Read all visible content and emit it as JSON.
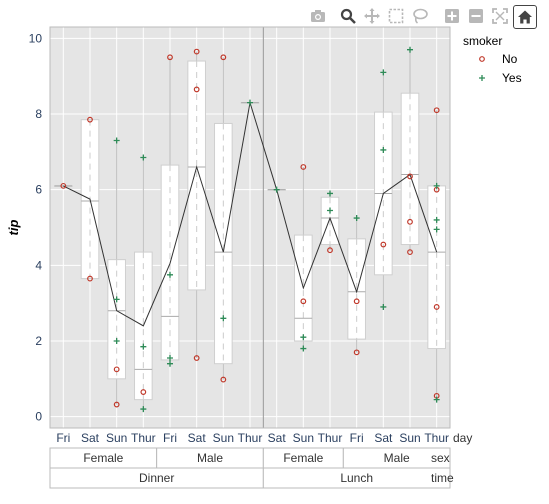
{
  "toolbar": {
    "buttons": [
      {
        "name": "camera-icon",
        "x": 0
      },
      {
        "name": "zoom-icon",
        "x": 0
      },
      {
        "name": "pan-icon",
        "x": 0
      },
      {
        "name": "box-select-icon",
        "x": 0
      },
      {
        "name": "lasso-icon",
        "x": 0
      },
      {
        "name": "zoom-in-icon",
        "x": 0
      },
      {
        "name": "zoom-out-icon",
        "x": 0
      },
      {
        "name": "autoscale-icon",
        "x": 0
      },
      {
        "name": "home-icon",
        "x": 0
      }
    ]
  },
  "chart_data": {
    "type": "box",
    "ylabel": "tip",
    "ylim": [
      -0.3,
      10.3
    ],
    "yticks": [
      0,
      2,
      4,
      6,
      8,
      10
    ],
    "categories": [
      {
        "day": "Fri",
        "sex": "Female",
        "time": "Dinner"
      },
      {
        "day": "Sat",
        "sex": "Female",
        "time": "Dinner"
      },
      {
        "day": "Sun",
        "sex": "Female",
        "time": "Dinner"
      },
      {
        "day": "Thur",
        "sex": "Female",
        "time": "Dinner"
      },
      {
        "day": "Fri",
        "sex": "Male",
        "time": "Dinner"
      },
      {
        "day": "Sat",
        "sex": "Male",
        "time": "Dinner"
      },
      {
        "day": "Sun",
        "sex": "Male",
        "time": "Dinner"
      },
      {
        "day": "Thur",
        "sex": "Male",
        "time": "Dinner"
      },
      {
        "day": "Sat",
        "sex": "Female",
        "time": "Lunch"
      },
      {
        "day": "Sun",
        "sex": "Female",
        "time": "Lunch"
      },
      {
        "day": "Thur",
        "sex": "Female",
        "time": "Lunch"
      },
      {
        "day": "Fri",
        "sex": "Male",
        "time": "Lunch"
      },
      {
        "day": "Sat",
        "sex": "Male",
        "time": "Lunch"
      },
      {
        "day": "Sun",
        "sex": "Male",
        "time": "Lunch"
      },
      {
        "day": "Thur",
        "sex": "Male",
        "time": "Lunch"
      }
    ],
    "axis_labels": {
      "day": "day",
      "sex": "sex",
      "time": "time"
    },
    "facets": {
      "sex": [
        {
          "label": "Female",
          "from": 0,
          "to": 3
        },
        {
          "label": "Male",
          "from": 4,
          "to": 7
        },
        {
          "label": "Female",
          "from": 8,
          "to": 10
        },
        {
          "label": "Male",
          "from": 11,
          "to": 14
        }
      ],
      "time": [
        {
          "label": "Dinner",
          "from": 0,
          "to": 7
        },
        {
          "label": "Lunch",
          "from": 8,
          "to": 14
        }
      ]
    },
    "boxes": [
      {
        "q1": 6.1,
        "q3": 6.1,
        "median": 6.1,
        "lo": 6.1,
        "hi": 6.1
      },
      {
        "q1": 3.65,
        "q3": 7.85,
        "median": 5.7,
        "lo": 3.65,
        "hi": 7.85
      },
      {
        "q1": 1.0,
        "q3": 4.15,
        "median": 2.8,
        "lo": 0.32,
        "hi": 7.3
      },
      {
        "q1": 0.45,
        "q3": 4.35,
        "median": 1.25,
        "lo": 0.2,
        "hi": 6.85
      },
      {
        "q1": 1.5,
        "q3": 6.65,
        "median": 2.65,
        "lo": 1.4,
        "hi": 9.5
      },
      {
        "q1": 3.35,
        "q3": 9.4,
        "median": 6.6,
        "lo": 1.55,
        "hi": 9.65
      },
      {
        "q1": 1.4,
        "q3": 7.75,
        "median": 4.35,
        "lo": 0.98,
        "hi": 9.5
      },
      {
        "q1": 8.3,
        "q3": 8.3,
        "median": 8.3,
        "lo": 8.3,
        "hi": 8.3
      },
      {
        "q1": 6.0,
        "q3": 6.0,
        "median": 6.0,
        "lo": 6.0,
        "hi": 6.0
      },
      {
        "q1": 2.0,
        "q3": 4.8,
        "median": 2.6,
        "lo": 1.8,
        "hi": 6.6
      },
      {
        "q1": 4.55,
        "q3": 5.8,
        "median": 5.25,
        "lo": 4.4,
        "hi": 5.9
      },
      {
        "q1": 2.05,
        "q3": 4.7,
        "median": 3.3,
        "lo": 1.7,
        "hi": 5.25
      },
      {
        "q1": 3.75,
        "q3": 8.05,
        "median": 5.9,
        "lo": 2.9,
        "hi": 9.1
      },
      {
        "q1": 4.55,
        "q3": 8.55,
        "median": 6.4,
        "lo": 4.35,
        "hi": 9.7
      },
      {
        "q1": 1.8,
        "q3": 6.1,
        "median": 4.35,
        "lo": 0.45,
        "hi": 8.1
      }
    ],
    "points": {
      "No": [
        [
          0,
          6.1
        ],
        [
          1,
          7.85
        ],
        [
          1,
          3.65
        ],
        [
          2,
          1.25
        ],
        [
          2,
          0.32
        ],
        [
          3,
          0.65
        ],
        [
          4,
          9.5
        ],
        [
          5,
          9.65
        ],
        [
          5,
          8.65
        ],
        [
          5,
          1.55
        ],
        [
          6,
          9.5
        ],
        [
          6,
          0.98
        ],
        [
          9,
          6.6
        ],
        [
          9,
          3.05
        ],
        [
          10,
          4.4
        ],
        [
          11,
          3.05
        ],
        [
          11,
          1.7
        ],
        [
          12,
          4.55
        ],
        [
          13,
          6.35
        ],
        [
          13,
          5.15
        ],
        [
          13,
          4.35
        ],
        [
          14,
          8.1
        ],
        [
          14,
          6.0
        ],
        [
          14,
          2.9
        ],
        [
          14,
          0.55
        ]
      ],
      "Yes": [
        [
          2,
          7.3
        ],
        [
          2,
          3.1
        ],
        [
          2,
          2.0
        ],
        [
          3,
          6.85
        ],
        [
          3,
          1.85
        ],
        [
          3,
          0.2
        ],
        [
          4,
          3.75
        ],
        [
          4,
          1.55
        ],
        [
          4,
          1.4
        ],
        [
          6,
          2.6
        ],
        [
          7,
          8.3
        ],
        [
          8,
          6.0
        ],
        [
          9,
          2.1
        ],
        [
          9,
          1.8
        ],
        [
          10,
          5.9
        ],
        [
          10,
          5.45
        ],
        [
          11,
          5.25
        ],
        [
          12,
          9.1
        ],
        [
          12,
          7.05
        ],
        [
          12,
          2.9
        ],
        [
          13,
          9.7
        ],
        [
          14,
          6.1
        ],
        [
          14,
          5.2
        ],
        [
          14,
          4.95
        ],
        [
          14,
          0.45
        ]
      ]
    },
    "mean_line": [
      6.1,
      5.75,
      2.8,
      2.4,
      4.05,
      6.6,
      4.35,
      8.3,
      6.0,
      3.4,
      5.25,
      3.3,
      5.9,
      6.4,
      4.35
    ],
    "legend": {
      "title": "smoker",
      "position": "top-right",
      "items": [
        {
          "label": "No",
          "marker": "circle",
          "color": "#c0392b"
        },
        {
          "label": "Yes",
          "marker": "cross",
          "color": "#2e8b57"
        }
      ]
    },
    "colors": {
      "plot_bg": "#e5e5e5",
      "grid": "#ffffff",
      "box_fill": "#ffffff",
      "box_line": "#cfcfcf",
      "mean_line": "#333333"
    }
  }
}
